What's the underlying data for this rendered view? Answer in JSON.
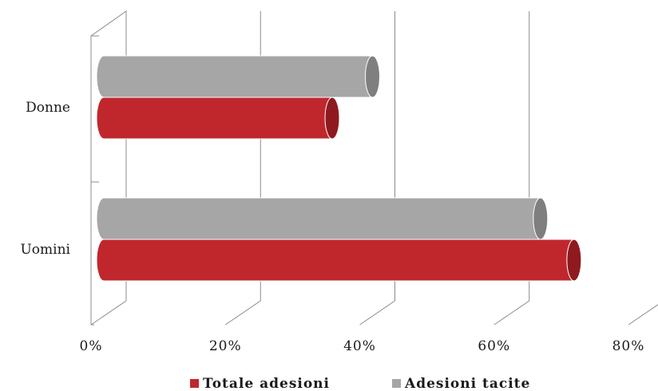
{
  "chart_data": {
    "type": "bar",
    "orientation": "horizontal",
    "style": "3d-cylinder",
    "categories": [
      "Donne",
      "Uomini"
    ],
    "series": [
      {
        "name": "Totale adesioni",
        "values": [
          34,
          70
        ],
        "color": "#c0272d",
        "end_color": "#8e1a1f"
      },
      {
        "name": "Adesioni tacite",
        "values": [
          40,
          65
        ],
        "color": "#a6a6a6",
        "end_color": "#7f7f7f"
      }
    ],
    "xlim": [
      0,
      80
    ],
    "xticks": [
      0,
      20,
      40,
      60,
      80
    ],
    "tick_format": "{v}%",
    "grid": true,
    "legend_position": "bottom"
  }
}
